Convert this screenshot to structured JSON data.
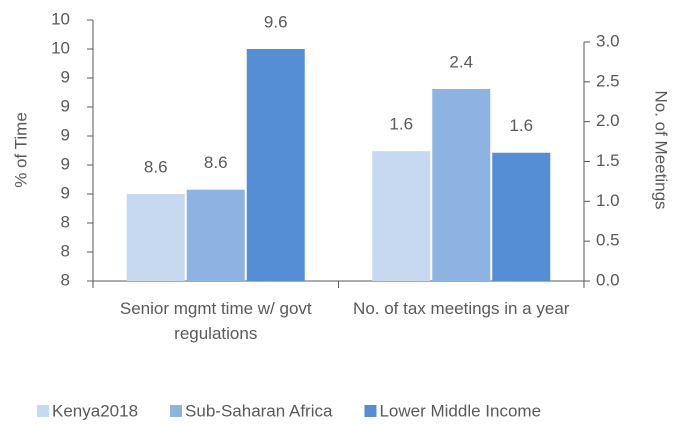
{
  "chart_data": {
    "type": "bar",
    "categories": [
      "Senior mgmt time w/ govt regulations",
      "No. of tax meetings in a year"
    ],
    "value_axes": [
      "y",
      "y2"
    ],
    "ylabel": "% of Time",
    "y2label": "No. of Meetings",
    "ylim": [
      8,
      9.8
    ],
    "yticks": [
      8,
      {
        "value": 8.2,
        "label": "8"
      },
      {
        "value": 8.4,
        "label": "8"
      },
      {
        "value": 8.6,
        "label": "9"
      },
      {
        "value": 8.8,
        "label": "9"
      },
      9,
      {
        "value": 9.2,
        "label": "9"
      },
      {
        "value": 9.4,
        "label": "9"
      },
      {
        "value": 9.6,
        "label": "10"
      },
      {
        "value": 9.8,
        "label": "10"
      }
    ],
    "y2lim": [
      0,
      3
    ],
    "y2ticks": [
      {
        "value": 0,
        "label": "0.0"
      },
      0.5,
      {
        "value": 1,
        "label": "1.0"
      },
      1.5,
      {
        "value": 2,
        "label": "2.0"
      },
      2.5,
      {
        "value": 3,
        "label": "3.0"
      }
    ],
    "series": [
      {
        "name": "Kenya2018",
        "color": "#c6d9f1",
        "values": [
          8.6,
          1.63
        ],
        "value_labels": [
          "8.6",
          "1.6"
        ]
      },
      {
        "name": "Sub-Saharan Africa",
        "color": "#8db3e2",
        "values": [
          8.63,
          2.41
        ],
        "value_labels": [
          "8.6",
          "2.4"
        ]
      },
      {
        "name": "Lower Middle Income",
        "color": "#558ed5",
        "values": [
          9.6,
          1.61
        ],
        "value_labels": [
          "9.6",
          "1.6"
        ]
      }
    ],
    "legend": "bottom"
  }
}
